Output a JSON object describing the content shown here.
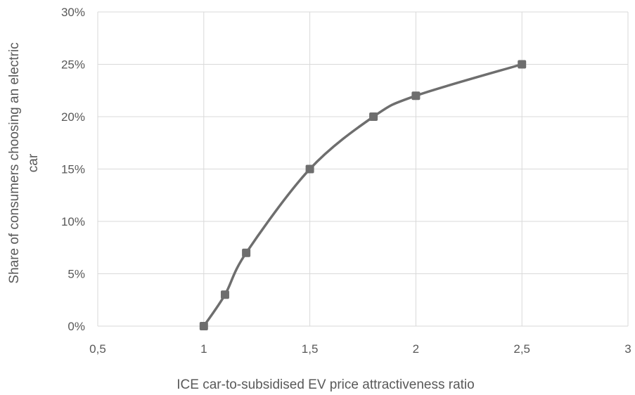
{
  "chart_data": {
    "type": "line",
    "title": "",
    "xlabel": "ICE car-to-subsidised EV price attractiveness ratio",
    "ylabel_lines": [
      "Share of consumers  choosing an electric",
      "car"
    ],
    "xlim": [
      0.5,
      3
    ],
    "ylim": [
      0,
      0.3
    ],
    "x_ticks": [
      0.5,
      1,
      1.5,
      2,
      2.5,
      3
    ],
    "x_tick_labels": [
      "0,5",
      "1",
      "1,5",
      "2",
      "2,5",
      "3"
    ],
    "y_ticks": [
      0,
      0.05,
      0.1,
      0.15,
      0.2,
      0.25,
      0.3
    ],
    "y_tick_labels": [
      "0%",
      "5%",
      "10%",
      "15%",
      "20%",
      "25%",
      "30%"
    ],
    "grid": true,
    "smooth": true,
    "series": [
      {
        "x": [
          1,
          1.1,
          1.2,
          1.5,
          1.8,
          2,
          2.5
        ],
        "y": [
          0,
          0.03,
          0.07,
          0.15,
          0.2,
          0.22,
          0.25
        ],
        "color": "#6e6e6e"
      }
    ],
    "grid_color": "#d9d9d9"
  }
}
